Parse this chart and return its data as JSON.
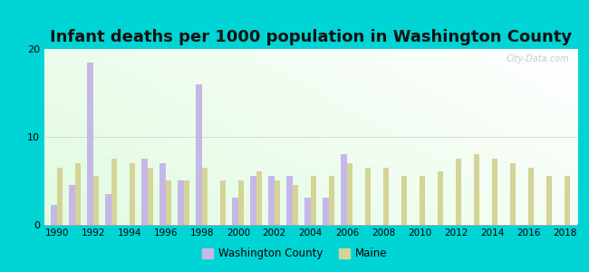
{
  "title": "Infant deaths per 1000 population in Washington County",
  "years": [
    1990,
    1991,
    1992,
    1993,
    1994,
    1995,
    1996,
    1997,
    1998,
    1999,
    2000,
    2001,
    2002,
    2003,
    2004,
    2005,
    2006,
    2007,
    2008,
    2009,
    2010,
    2011,
    2012,
    2013,
    2014,
    2015,
    2016,
    2017,
    2018
  ],
  "washington_county": [
    2.2,
    4.5,
    18.5,
    3.5,
    0.0,
    7.5,
    7.0,
    5.0,
    16.0,
    0.0,
    3.0,
    5.5,
    5.5,
    5.5,
    3.0,
    3.0,
    8.0,
    0.0,
    0.0,
    0.0,
    0.0,
    0.0,
    0.0,
    0.0,
    0.0,
    0.0,
    0.0,
    0.0,
    0.0
  ],
  "maine": [
    6.5,
    7.0,
    5.5,
    7.5,
    7.0,
    6.5,
    5.0,
    5.0,
    6.5,
    5.0,
    5.0,
    6.0,
    5.0,
    4.5,
    5.5,
    5.5,
    7.0,
    6.5,
    6.5,
    5.5,
    5.5,
    6.0,
    7.5,
    8.0,
    7.5,
    7.0,
    6.5,
    5.5,
    5.5
  ],
  "washington_color": "#c5b8e8",
  "maine_color": "#d4d496",
  "ylim": [
    0,
    20
  ],
  "yticks": [
    0,
    10,
    20
  ],
  "outer_background": "#00d4d4",
  "title_fontsize": 13,
  "watermark": "City-Data.com"
}
